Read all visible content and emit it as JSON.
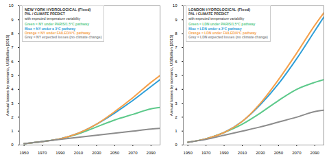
{
  "chart_data": [
    {
      "type": "line",
      "title": "NEW YORK HYDROLOGICAL (Flood)",
      "subtitle": "PAL / CLIMATE PREDICT",
      "annotations": [
        "with expected temperature variability"
      ],
      "y_label": "Annual losses by scenario, US$billion [2015]",
      "x": [
        1950,
        1970,
        1990,
        2010,
        2030,
        2050,
        2070,
        2090,
        2100
      ],
      "series": [
        {
          "name": "Green = NY under PARIS/1.5°C pathway",
          "color": "#5cc98a",
          "values": [
            0.1,
            0.25,
            0.45,
            0.8,
            1.3,
            1.8,
            2.2,
            2.6,
            2.7
          ]
        },
        {
          "name": "Blue = NY under a 3°C pathway",
          "color": "#2f9fd8",
          "values": [
            0.1,
            0.25,
            0.45,
            0.85,
            1.5,
            2.3,
            3.2,
            4.2,
            4.7
          ]
        },
        {
          "name": "Orange = NY under FAILED/4°C pathway",
          "color": "#f5a04a",
          "values": [
            0.1,
            0.25,
            0.45,
            0.85,
            1.5,
            2.4,
            3.4,
            4.5,
            5.0
          ]
        },
        {
          "name": "Grey = NY expected losses (no climate change)",
          "color": "#8c8c8c",
          "values": [
            0.1,
            0.25,
            0.4,
            0.55,
            0.7,
            0.85,
            1.0,
            1.15,
            1.2
          ]
        }
      ],
      "xlim": [
        1945,
        2100
      ],
      "xticks": [
        1950,
        1970,
        1990,
        2010,
        2030,
        2050,
        2070,
        2090
      ],
      "ylim": [
        0,
        10
      ],
      "yticks": [
        0,
        1,
        2,
        3,
        4,
        5,
        6,
        7,
        8,
        9,
        10
      ],
      "legend": "top-left",
      "grid": false
    },
    {
      "type": "line",
      "title": "LONDON HYDROLOGICAL (Flood)",
      "subtitle": "PAL / CLIMATE PREDICT",
      "annotations": [
        "with expected temperature variability"
      ],
      "y_label": "Annual losses by scenario, US$billion [2015]",
      "x": [
        1950,
        1970,
        1990,
        2010,
        2030,
        2050,
        2070,
        2090,
        2100
      ],
      "series": [
        {
          "name": "Green = LDN under PARIS/1.5°C pathway",
          "color": "#5cc98a",
          "values": [
            0.2,
            0.45,
            0.9,
            1.5,
            2.3,
            3.2,
            4.0,
            4.5,
            4.7
          ]
        },
        {
          "name": "Blue = LDN under a 3°C pathway",
          "color": "#2f9fd8",
          "values": [
            0.2,
            0.45,
            0.9,
            1.7,
            2.9,
            4.4,
            6.2,
            8.2,
            9.2
          ]
        },
        {
          "name": "Orange = LDN under FAILED/4°C pathway",
          "color": "#f5a04a",
          "values": [
            0.2,
            0.45,
            0.9,
            1.7,
            3.0,
            4.7,
            6.6,
            8.6,
            9.5
          ]
        },
        {
          "name": "Grey = LDN expected losses (no climate change)",
          "color": "#8c8c8c",
          "values": [
            0.2,
            0.4,
            0.7,
            1.0,
            1.3,
            1.65,
            2.0,
            2.4,
            2.5
          ]
        }
      ],
      "xlim": [
        1945,
        2100
      ],
      "xticks": [
        1950,
        1970,
        1990,
        2010,
        2030,
        2050,
        2070,
        2090
      ],
      "ylim": [
        0,
        10
      ],
      "yticks": [
        0,
        1,
        2,
        3,
        4,
        5,
        6,
        7,
        8,
        9,
        10
      ],
      "legend": "top-left",
      "grid": false
    }
  ]
}
